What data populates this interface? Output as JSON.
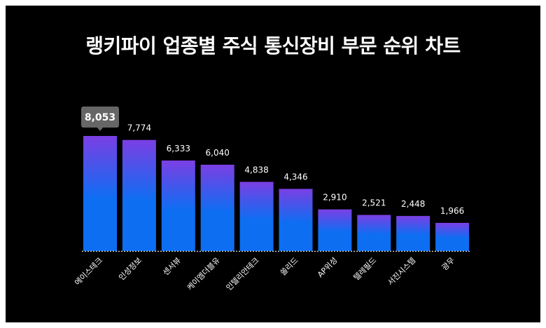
{
  "chart_data": {
    "type": "bar",
    "title": "랭키파이 업종별 주식 통신장비 부문 순위 차트",
    "categories": [
      "에이스테크",
      "인성정보",
      "센서뷰",
      "케이엠더블유",
      "인텔리안테크",
      "쏠리드",
      "AP위성",
      "텔레필드",
      "서진시스템",
      "광무"
    ],
    "values": [
      8053,
      7774,
      6333,
      6040,
      4838,
      4346,
      2910,
      2521,
      2448,
      1966
    ],
    "value_labels": [
      "8,053",
      "7,774",
      "6,333",
      "6,040",
      "4,838",
      "4,346",
      "2,910",
      "2,521",
      "2,448",
      "1,966"
    ],
    "highlight_index": 0,
    "ylim": [
      0,
      8053
    ],
    "grid": false,
    "legend": "none",
    "colors": {
      "background": "#000000",
      "bar_top": "#7b3fe4",
      "bar_bottom": "#0d6ef2",
      "tooltip": "#666666",
      "text": "#ffffff",
      "baseline": "#ffffff"
    }
  }
}
